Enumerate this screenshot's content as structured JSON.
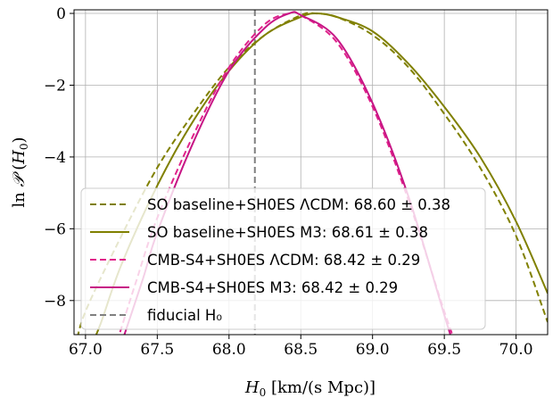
{
  "chart_data": {
    "type": "line",
    "title": "",
    "xlabel": "H₀ [km/(s Mpc)]",
    "ylabel": "ln 𝒫 (H₀)",
    "xlim": [
      66.92,
      70.22
    ],
    "ylim": [
      -8.95,
      0.1
    ],
    "xticks": [
      67.0,
      67.5,
      68.0,
      68.5,
      69.0,
      69.5,
      70.0
    ],
    "xtick_labels": [
      "67.0",
      "67.5",
      "68.0",
      "68.5",
      "69.0",
      "69.5",
      "70.0"
    ],
    "yticks": [
      0,
      -2,
      -4,
      -6,
      -8
    ],
    "ytick_labels": [
      "0",
      "−2",
      "−4",
      "−6",
      "−8"
    ],
    "grid": true,
    "legend_position": "lower-left",
    "fiducial_H0": 68.18,
    "series": [
      {
        "name": "SO baseline+SH0ES ΛCDM: 68.60 ± 0.38",
        "color": "#808000",
        "dash": "dashed",
        "x": [
          66.93,
          67.0,
          67.25,
          67.5,
          67.75,
          68.0,
          68.25,
          68.5,
          68.6,
          68.75,
          69.0,
          69.25,
          69.5,
          69.75,
          70.0,
          70.22
        ],
        "y": [
          -9.3,
          -8.3,
          -6.2,
          -4.3,
          -2.8,
          -1.5,
          -0.6,
          -0.05,
          0.0,
          -0.1,
          -0.6,
          -1.5,
          -2.8,
          -4.3,
          -6.2,
          -8.6
        ]
      },
      {
        "name": "SO baseline+SH0ES M3: 68.61 ± 0.38",
        "color": "#808000",
        "dash": "solid",
        "x": [
          67.0,
          67.1,
          67.25,
          67.5,
          67.75,
          68.0,
          68.25,
          68.5,
          68.61,
          68.75,
          69.0,
          69.25,
          69.5,
          69.75,
          70.0,
          70.22
        ],
        "y": [
          -9.6,
          -8.7,
          -7.0,
          -4.8,
          -3.0,
          -1.6,
          -0.6,
          -0.1,
          0.0,
          -0.1,
          -0.5,
          -1.4,
          -2.6,
          -4.0,
          -5.8,
          -7.8
        ]
      },
      {
        "name": "CMB-S4+SH0ES ΛCDM: 68.42 ± 0.29",
        "color": "#e0218a",
        "dash": "dashed",
        "x": [
          67.2,
          67.35,
          67.5,
          67.75,
          68.0,
          68.25,
          68.42,
          68.5,
          68.75,
          69.0,
          69.25,
          69.5,
          69.65
        ],
        "y": [
          -9.4,
          -7.5,
          -5.7,
          -3.4,
          -1.5,
          -0.3,
          0.0,
          -0.05,
          -0.8,
          -2.6,
          -5.2,
          -8.3,
          -10.0
        ]
      },
      {
        "name": "CMB-S4+SH0ES M3: 68.42 ± 0.29",
        "color": "#c71585",
        "dash": "solid",
        "x": [
          67.25,
          67.4,
          67.5,
          67.75,
          68.0,
          68.25,
          68.42,
          68.5,
          68.75,
          69.0,
          69.25,
          69.5,
          69.7
        ],
        "y": [
          -9.2,
          -7.4,
          -6.1,
          -3.6,
          -1.6,
          -0.4,
          0.0,
          -0.05,
          -0.7,
          -2.5,
          -5.1,
          -8.4,
          -11.0
        ]
      }
    ],
    "reference_line": {
      "name": "fiducial H₀",
      "color": "#808080",
      "dash": "dashed",
      "x": 68.18
    }
  }
}
